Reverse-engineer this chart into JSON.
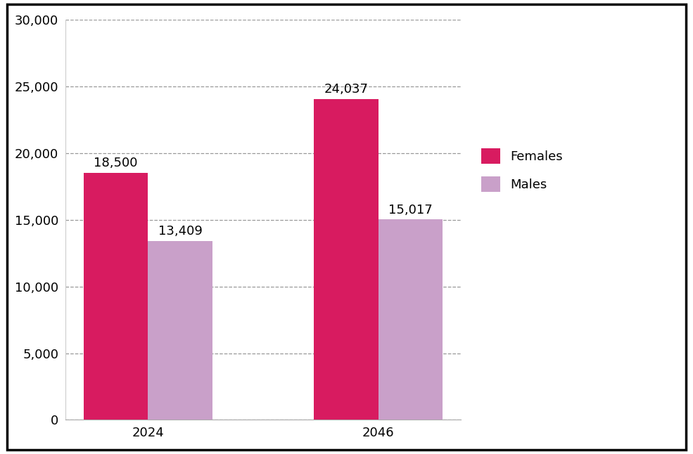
{
  "categories": [
    "2024",
    "2046"
  ],
  "females": [
    18500,
    24037
  ],
  "males": [
    13409,
    15017
  ],
  "female_color": "#D81B60",
  "male_color": "#C9A0C9",
  "bar_width": 0.28,
  "ylim": [
    0,
    30000
  ],
  "yticks": [
    0,
    5000,
    10000,
    15000,
    20000,
    25000,
    30000
  ],
  "legend_labels": [
    "Females",
    "Males"
  ],
  "grid_color": "#999999",
  "grid_linestyle": "--",
  "grid_linewidth": 0.9,
  "label_fontsize": 13,
  "tick_fontsize": 13,
  "annotation_fontsize": 13,
  "background_color": "#ffffff",
  "border_color": "#000000"
}
